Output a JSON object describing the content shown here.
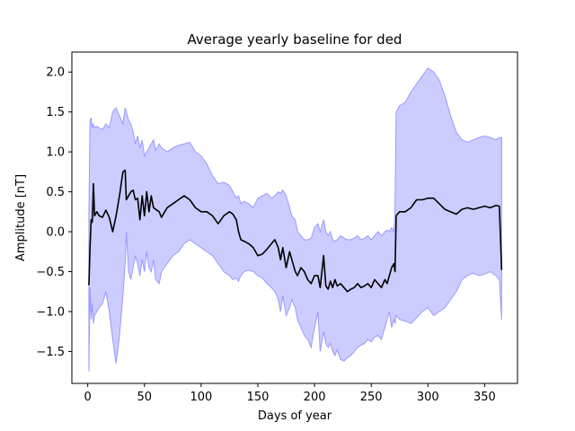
{
  "chart_data": {
    "type": "line",
    "title": "Average yearly baseline for ded",
    "xlabel": "Days of year",
    "ylabel": "Amplitude [nT]",
    "xlim": [
      -14,
      379
    ],
    "ylim": [
      -1.9,
      2.25
    ],
    "xticks": [
      0,
      50,
      100,
      150,
      200,
      250,
      300,
      350
    ],
    "yticks": [
      -1.5,
      -1.0,
      -0.5,
      0.0,
      0.5,
      1.0,
      1.5,
      2.0
    ],
    "ytick_labels": [
      "−1.5",
      "−1.0",
      "−0.5",
      "0.0",
      "0.5",
      "1.0",
      "1.5",
      "2.0"
    ],
    "grid": false,
    "colors": {
      "line": "#000000",
      "band_fill": "#ccccff",
      "band_edge": "#9999ff"
    },
    "series": [
      {
        "values_x": [
          1,
          2,
          3,
          4,
          5,
          6,
          8,
          10,
          13,
          16,
          19,
          22,
          25,
          28,
          31,
          33,
          34,
          36,
          38,
          40,
          42,
          44,
          46,
          48,
          50,
          52,
          54,
          56,
          58,
          60,
          63,
          65,
          70,
          75,
          80,
          85,
          90,
          95,
          100,
          105,
          110,
          115,
          120,
          125,
          128,
          131,
          133,
          135,
          138,
          142,
          146,
          150,
          154,
          158,
          162,
          165,
          168,
          170,
          172,
          175,
          178,
          180,
          183,
          185,
          188,
          191,
          194,
          197,
          200,
          203,
          205,
          208,
          210,
          212,
          214,
          216,
          218,
          220,
          223,
          226,
          229,
          232,
          235,
          238,
          241,
          244,
          247,
          250,
          253,
          256,
          259,
          262,
          264,
          266,
          268,
          270,
          271,
          272,
          275,
          280,
          285,
          290,
          295,
          300,
          305,
          310,
          315,
          320,
          325,
          330,
          335,
          340,
          345,
          350,
          355,
          360,
          363,
          365
        ],
        "values_y": [
          -0.67,
          -0.2,
          0.15,
          0.12,
          0.6,
          0.2,
          0.25,
          0.2,
          0.18,
          0.27,
          0.18,
          0.0,
          0.2,
          0.45,
          0.75,
          0.77,
          0.4,
          0.45,
          0.5,
          0.52,
          0.4,
          0.42,
          0.15,
          0.45,
          0.2,
          0.5,
          0.25,
          0.45,
          0.3,
          0.28,
          0.25,
          0.18,
          0.3,
          0.35,
          0.4,
          0.45,
          0.4,
          0.3,
          0.25,
          0.25,
          0.2,
          0.1,
          0.2,
          0.25,
          0.22,
          0.15,
          0.0,
          -0.1,
          -0.12,
          -0.15,
          -0.2,
          -0.3,
          -0.28,
          -0.22,
          -0.15,
          -0.1,
          -0.2,
          -0.35,
          -0.2,
          -0.45,
          -0.25,
          -0.35,
          -0.5,
          -0.55,
          -0.45,
          -0.5,
          -0.6,
          -0.65,
          -0.55,
          -0.55,
          -0.7,
          -0.3,
          -0.68,
          -0.72,
          -0.62,
          -0.7,
          -0.6,
          -0.68,
          -0.65,
          -0.7,
          -0.75,
          -0.72,
          -0.7,
          -0.65,
          -0.7,
          -0.68,
          -0.65,
          -0.7,
          -0.6,
          -0.65,
          -0.7,
          -0.6,
          -0.65,
          -0.55,
          -0.45,
          -0.4,
          -0.5,
          0.2,
          0.25,
          0.25,
          0.3,
          0.4,
          0.4,
          0.42,
          0.42,
          0.35,
          0.28,
          0.25,
          0.22,
          0.28,
          0.3,
          0.28,
          0.3,
          0.32,
          0.3,
          0.33,
          0.32,
          -0.48
        ],
        "band_upper": [
          0.2,
          1.4,
          1.42,
          1.3,
          1.35,
          1.3,
          1.32,
          1.3,
          1.28,
          1.35,
          1.3,
          1.5,
          1.55,
          1.45,
          1.35,
          1.55,
          1.5,
          1.4,
          1.35,
          1.25,
          1.1,
          1.2,
          1.05,
          1.15,
          0.95,
          1.0,
          1.05,
          1.1,
          1.15,
          1.02,
          1.1,
          1.05,
          1.0,
          1.05,
          1.08,
          1.1,
          1.12,
          1.0,
          0.95,
          0.85,
          0.7,
          0.6,
          0.62,
          0.58,
          0.5,
          0.42,
          0.45,
          0.35,
          0.38,
          0.35,
          0.3,
          0.42,
          0.45,
          0.48,
          0.42,
          0.45,
          0.5,
          0.48,
          0.52,
          0.45,
          0.3,
          0.2,
          0.15,
          0.0,
          -0.05,
          -0.1,
          -0.1,
          -0.08,
          0.05,
          0.1,
          0.0,
          0.15,
          0.0,
          -0.05,
          0.0,
          -0.1,
          -0.12,
          -0.1,
          -0.05,
          -0.08,
          -0.1,
          -0.1,
          -0.08,
          -0.05,
          -0.1,
          -0.08,
          -0.05,
          -0.1,
          -0.05,
          0.0,
          -0.05,
          0.0,
          0.02,
          0.0,
          0.05,
          0.0,
          0.3,
          1.5,
          1.58,
          1.62,
          1.75,
          1.85,
          1.95,
          2.05,
          2.0,
          1.9,
          1.7,
          1.45,
          1.25,
          1.15,
          1.12,
          1.15,
          1.18,
          1.2,
          1.18,
          1.15,
          1.18,
          1.18
        ],
        "band_lower": [
          -1.75,
          -0.7,
          -1.1,
          -0.9,
          -1.15,
          -1.05,
          -1.0,
          -0.95,
          -0.9,
          -0.75,
          -1.0,
          -1.35,
          -1.65,
          -1.3,
          -0.8,
          -0.4,
          0.0,
          -0.5,
          -0.6,
          -0.45,
          -0.3,
          -0.4,
          -0.55,
          -0.35,
          -0.5,
          -0.25,
          -0.45,
          -0.5,
          -0.35,
          -0.6,
          -0.65,
          -0.5,
          -0.4,
          -0.3,
          -0.25,
          -0.15,
          -0.1,
          -0.15,
          -0.2,
          -0.25,
          -0.3,
          -0.4,
          -0.5,
          -0.55,
          -0.6,
          -0.58,
          -0.62,
          -0.55,
          -0.5,
          -0.48,
          -0.5,
          -0.55,
          -0.58,
          -0.65,
          -0.7,
          -0.75,
          -0.85,
          -1.0,
          -0.8,
          -1.05,
          -0.95,
          -0.85,
          -0.95,
          -1.1,
          -1.2,
          -1.3,
          -1.35,
          -1.45,
          -1.2,
          -1.0,
          -1.5,
          -1.25,
          -1.4,
          -1.45,
          -1.4,
          -1.5,
          -1.55,
          -1.48,
          -1.6,
          -1.62,
          -1.58,
          -1.55,
          -1.5,
          -1.45,
          -1.42,
          -1.4,
          -1.35,
          -1.38,
          -1.32,
          -1.3,
          -1.35,
          -1.2,
          -1.1,
          -1.0,
          -1.2,
          -1.1,
          -1.15,
          -1.05,
          -1.1,
          -1.12,
          -1.15,
          -1.08,
          -1.0,
          -0.95,
          -1.05,
          -1.0,
          -0.95,
          -0.85,
          -0.75,
          -0.6,
          -0.55,
          -0.52,
          -0.55,
          -0.53,
          -0.5,
          -0.55,
          -0.6,
          -1.1
        ]
      }
    ]
  }
}
